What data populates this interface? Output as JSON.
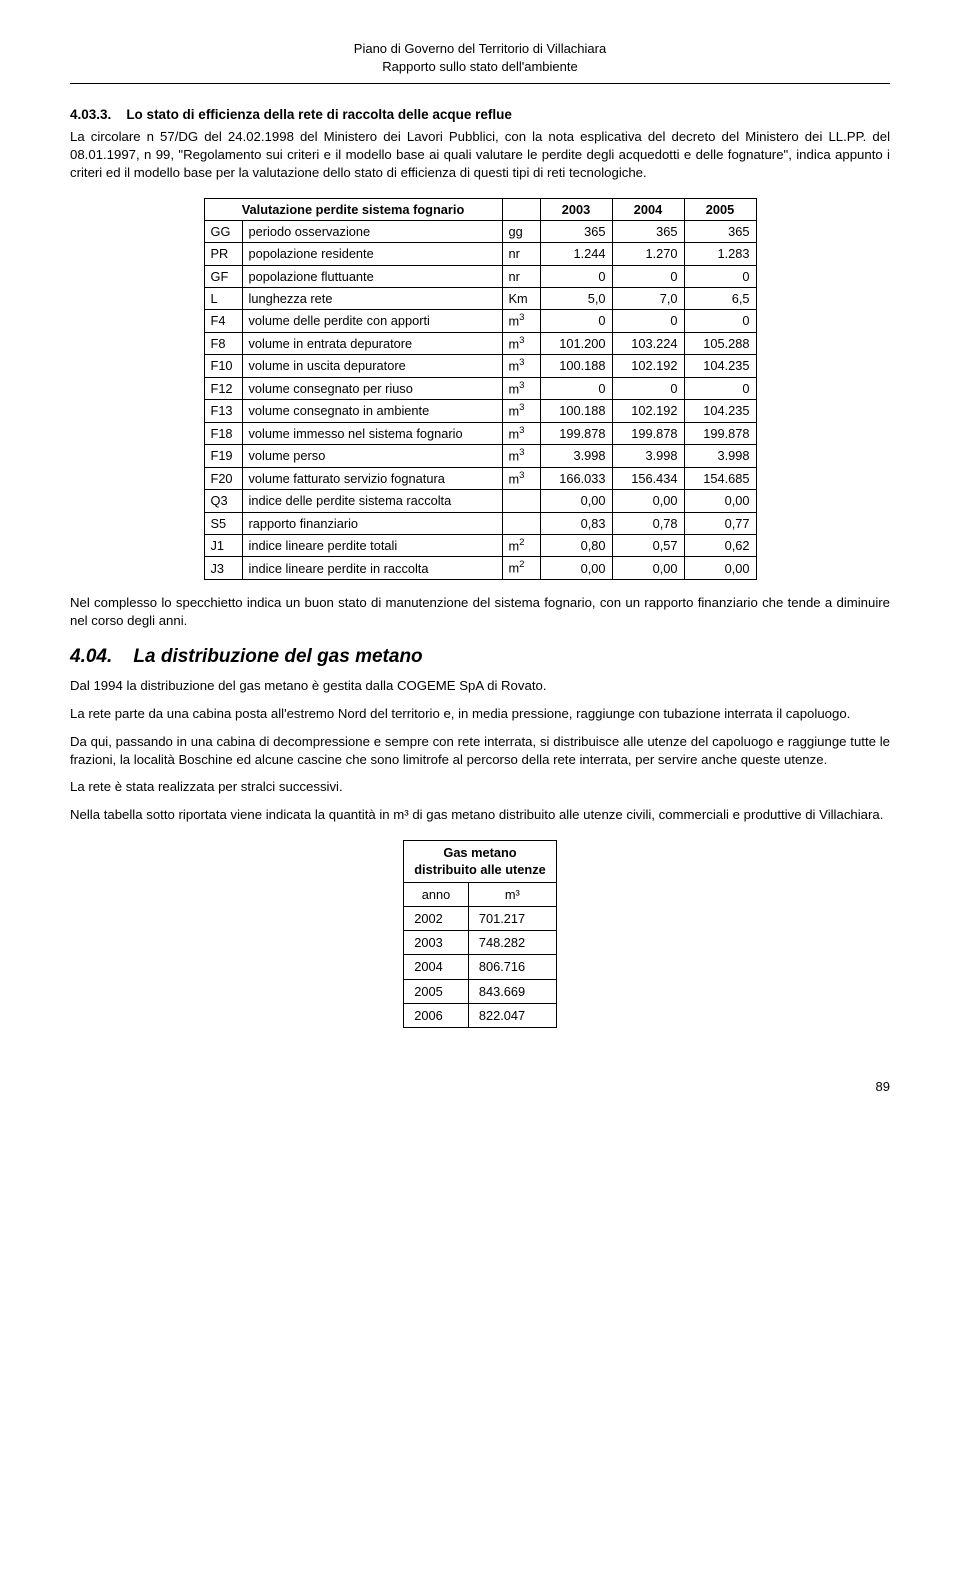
{
  "header": {
    "line1": "Piano di Governo del Territorio di Villachiara",
    "line2": "Rapporto sullo stato dell'ambiente"
  },
  "section403": {
    "heading_num": "4.03.3.",
    "heading_text": "Lo stato di efficienza della rete di raccolta delle acque reflue",
    "para": "La circolare n 57/DG del 24.02.1998 del Ministero dei Lavori Pubblici, con la nota esplicativa del decreto del Ministero dei LL.PP. del 08.01.1997, n 99, \"Regolamento sui criteri e il modello base ai quali valutare le perdite degli acquedotti e delle fognature\", indica appunto i criteri ed il modello base per la valutazione dello stato di efficienza di questi tipi di reti tecnologiche."
  },
  "table1": {
    "caption": "Valutazione perdite sistema fognario",
    "year_cols": [
      "2003",
      "2004",
      "2005"
    ],
    "rows": [
      {
        "code": "GG",
        "desc": "periodo osservazione",
        "unit": "gg",
        "v": [
          "365",
          "365",
          "365"
        ]
      },
      {
        "code": "PR",
        "desc": "popolazione residente",
        "unit": "nr",
        "v": [
          "1.244",
          "1.270",
          "1.283"
        ]
      },
      {
        "code": "GF",
        "desc": "popolazione fluttuante",
        "unit": "nr",
        "v": [
          "0",
          "0",
          "0"
        ]
      },
      {
        "code": "L",
        "desc": "lunghezza rete",
        "unit": "Km",
        "v": [
          "5,0",
          "7,0",
          "6,5"
        ]
      },
      {
        "code": "F4",
        "desc": "volume delle perdite con apporti",
        "unit": "m³",
        "v": [
          "0",
          "0",
          "0"
        ]
      },
      {
        "code": "F8",
        "desc": "volume in entrata depuratore",
        "unit": "m³",
        "v": [
          "101.200",
          "103.224",
          "105.288"
        ]
      },
      {
        "code": "F10",
        "desc": "volume in uscita depuratore",
        "unit": "m³",
        "v": [
          "100.188",
          "102.192",
          "104.235"
        ]
      },
      {
        "code": "F12",
        "desc": "volume consegnato per riuso",
        "unit": "m³",
        "v": [
          "0",
          "0",
          "0"
        ]
      },
      {
        "code": "F13",
        "desc": "volume consegnato in ambiente",
        "unit": "m³",
        "v": [
          "100.188",
          "102.192",
          "104.235"
        ]
      },
      {
        "code": "F18",
        "desc": "volume immesso nel sistema fognario",
        "unit": "m³",
        "v": [
          "199.878",
          "199.878",
          "199.878"
        ]
      },
      {
        "code": "F19",
        "desc": "volume perso",
        "unit": "m³",
        "v": [
          "3.998",
          "3.998",
          "3.998"
        ]
      },
      {
        "code": "F20",
        "desc": "volume fatturato servizio fognatura",
        "unit": "m³",
        "v": [
          "166.033",
          "156.434",
          "154.685"
        ]
      },
      {
        "code": "Q3",
        "desc": "indice delle perdite sistema raccolta",
        "unit": "",
        "v": [
          "0,00",
          "0,00",
          "0,00"
        ]
      },
      {
        "code": "S5",
        "desc": "rapporto finanziario",
        "unit": "",
        "v": [
          "0,83",
          "0,78",
          "0,77"
        ]
      },
      {
        "code": "J1",
        "desc": "indice lineare perdite totali",
        "unit": "m²",
        "v": [
          "0,80",
          "0,57",
          "0,62"
        ]
      },
      {
        "code": "J3",
        "desc": "indice lineare perdite in raccolta",
        "unit": "m²",
        "v": [
          "0,00",
          "0,00",
          "0,00"
        ]
      }
    ],
    "colors": {
      "border": "#000000",
      "text": "#000000",
      "background": "#ffffff"
    },
    "font_size_pt": 9.5
  },
  "para_after_table1": "Nel complesso lo specchietto indica un buon stato di manutenzione del sistema fognario, con un rapporto finanziario che tende a diminuire nel corso degli anni.",
  "section404": {
    "heading_num": "4.04.",
    "heading_text": "La distribuzione del gas metano",
    "paras": [
      "Dal 1994 la distribuzione del gas metano è gestita dalla COGEME SpA di Rovato.",
      "La rete parte da una cabina posta all'estremo Nord del territorio e, in media pressione, raggiunge con tubazione interrata il capoluogo.",
      "Da qui, passando in una cabina di decompressione e sempre con rete interrata, si distribuisce alle utenze del capoluogo e raggiunge tutte le frazioni, la località Boschine ed alcune cascine che sono limitrofe al percorso della rete interrata, per servire anche queste utenze.",
      "La rete è stata realizzata per stralci successivi.",
      "Nella tabella sotto riportata viene indicata la quantità in m³ di gas metano distribuito alle utenze civili, commerciali e produttive di Villachiara."
    ]
  },
  "table2": {
    "title_line1": "Gas metano",
    "title_line2": "distribuito alle utenze",
    "col_labels": [
      "anno",
      "m³"
    ],
    "rows": [
      {
        "anno": "2002",
        "val": "701.217"
      },
      {
        "anno": "2003",
        "val": "748.282"
      },
      {
        "anno": "2004",
        "val": "806.716"
      },
      {
        "anno": "2005",
        "val": "843.669"
      },
      {
        "anno": "2006",
        "val": "822.047"
      }
    ],
    "colors": {
      "border": "#000000",
      "text": "#000000",
      "background": "#ffffff"
    },
    "font_size_pt": 9.5
  },
  "page_number": "89"
}
